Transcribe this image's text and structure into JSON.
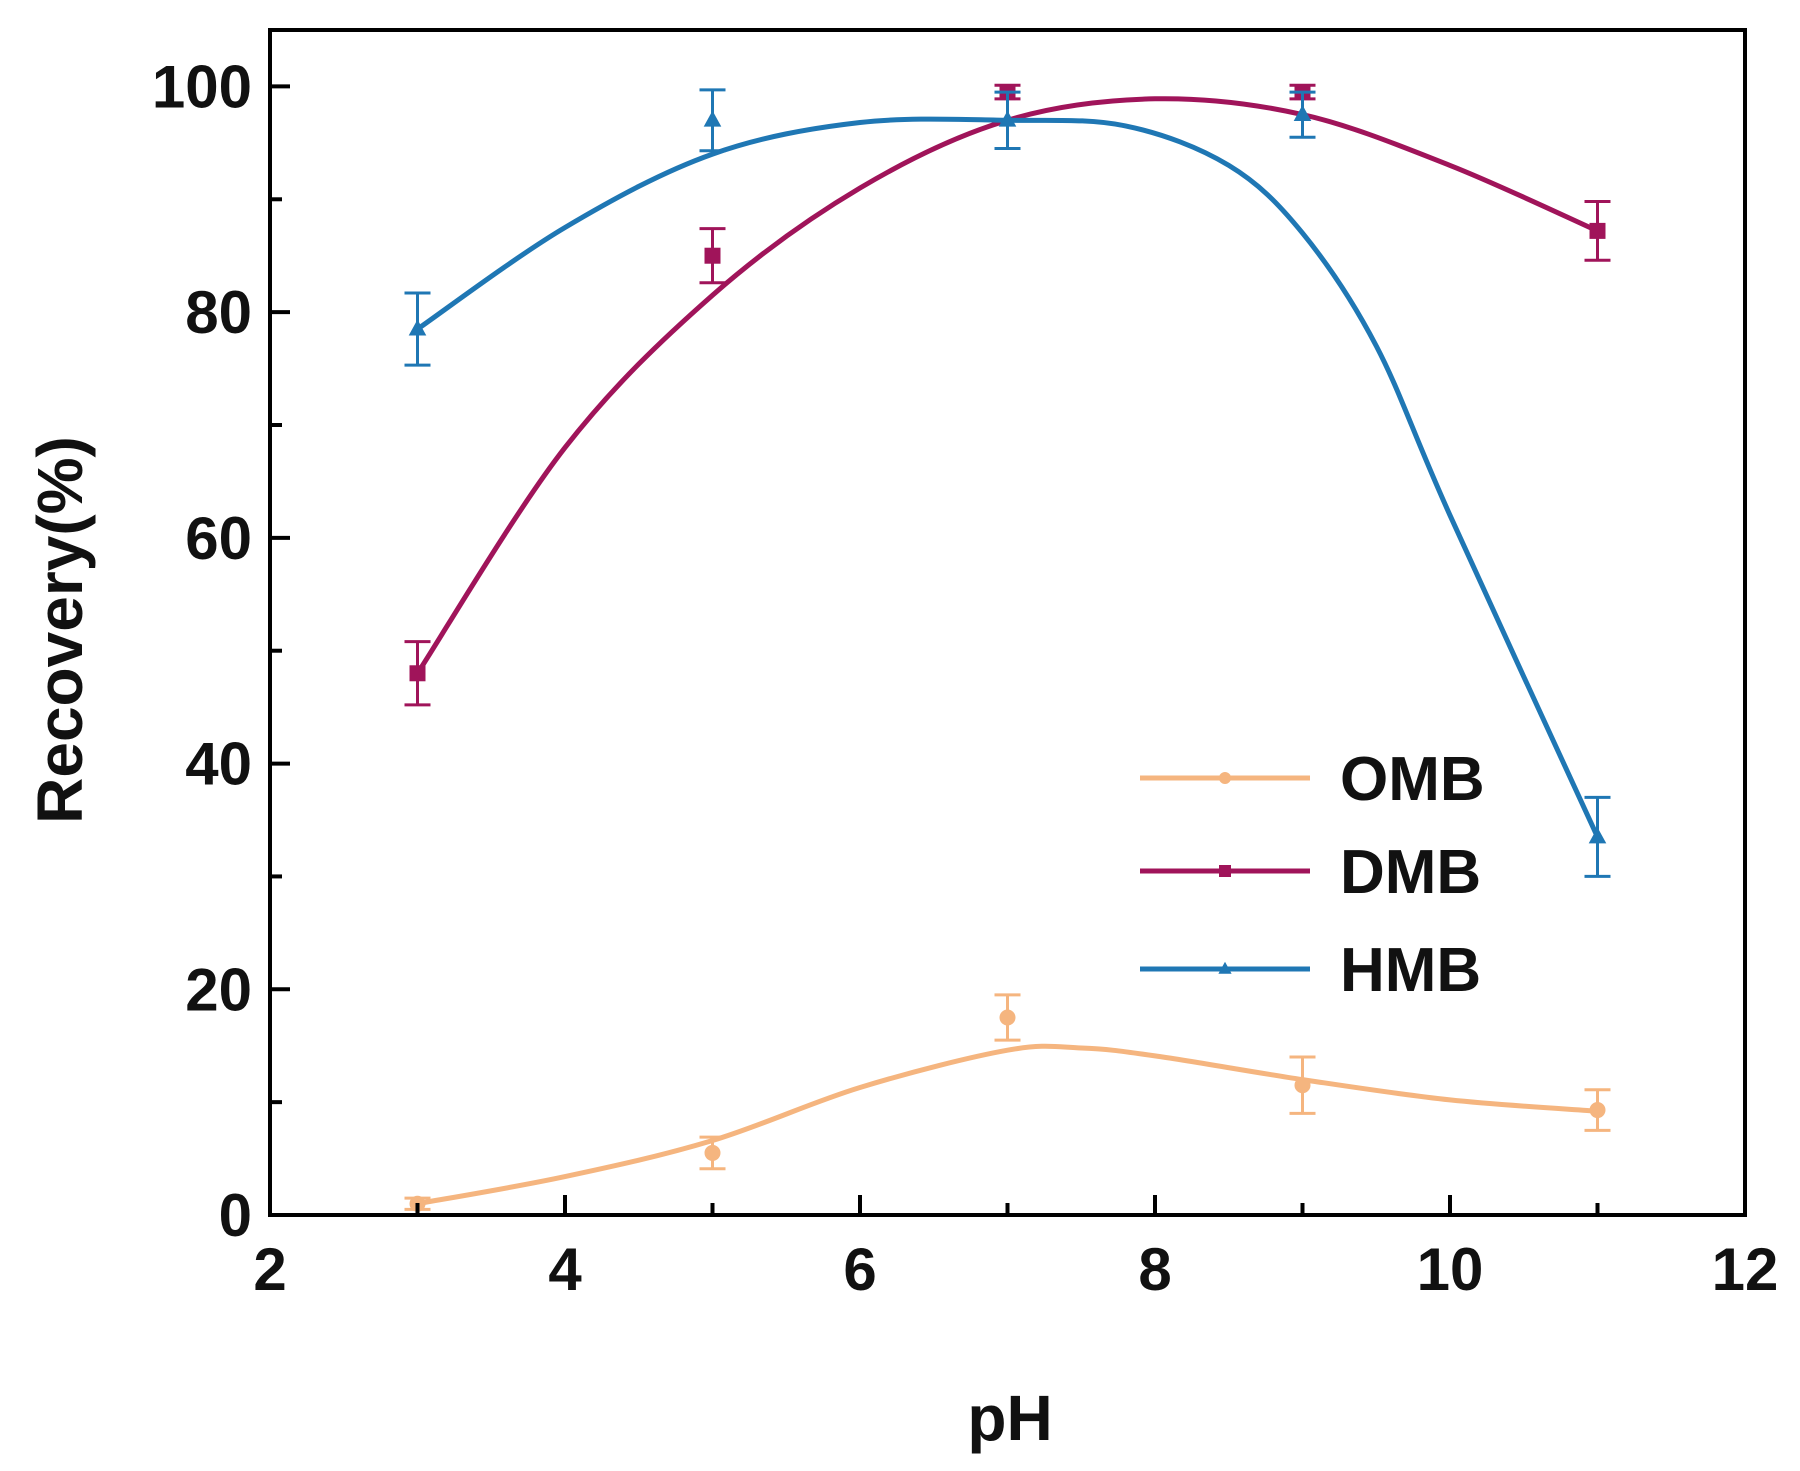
{
  "chart_data": {
    "type": "line",
    "xlabel": "pH",
    "ylabel": "Recovery(%)",
    "xlim": [
      2,
      12
    ],
    "ylim": [
      0,
      105
    ],
    "xticks": [
      2,
      4,
      6,
      8,
      10,
      12
    ],
    "yticks": [
      0,
      20,
      40,
      60,
      80,
      100
    ],
    "x_tick_labels": [
      "2",
      "4",
      "6",
      "8",
      "10",
      "12"
    ],
    "y_tick_labels": [
      "0",
      "20",
      "40",
      "60",
      "80",
      "100"
    ],
    "grid": false,
    "legend_position": "center-right",
    "x": [
      3,
      5,
      7,
      9,
      11
    ],
    "series": [
      {
        "name": "OMB",
        "color": "#f5b57f",
        "marker": "circle",
        "values": [
          1.0,
          5.5,
          17.5,
          11.5,
          9.3
        ],
        "errors": [
          0.5,
          1.4,
          2.0,
          2.5,
          1.8
        ],
        "fit_x": [
          3,
          4,
          5,
          6,
          7,
          7.5,
          8,
          9,
          10,
          11
        ],
        "fit_y": [
          1.0,
          3.4,
          6.6,
          11.3,
          14.6,
          14.8,
          14.1,
          12.0,
          10.2,
          9.2
        ]
      },
      {
        "name": "DMB",
        "color": "#a0145a",
        "marker": "square",
        "values": [
          48.0,
          85.0,
          99.5,
          99.5,
          87.2
        ],
        "errors": [
          2.8,
          2.4,
          0.6,
          0.6,
          2.6
        ],
        "fit_x": [
          3,
          4,
          5,
          6,
          7,
          8,
          9,
          10,
          11
        ],
        "fit_y": [
          48.0,
          68.0,
          81.5,
          91.0,
          97.0,
          98.9,
          97.5,
          93.0,
          87.2
        ],
        "fit_smooth": true
      },
      {
        "name": "HMB",
        "color": "#1f77b4",
        "marker": "triangle",
        "values": [
          78.5,
          97.0,
          97.0,
          97.5,
          33.5
        ],
        "errors": [
          3.2,
          2.7,
          2.5,
          2.0,
          3.5
        ],
        "fit_x": [
          3,
          4,
          5,
          6,
          7,
          7.8,
          8.5,
          9,
          9.5,
          10,
          11
        ],
        "fit_y": [
          78.5,
          87.5,
          94.0,
          96.8,
          97.0,
          96.5,
          93.0,
          87.0,
          77.0,
          62.0,
          33.5
        ]
      }
    ]
  }
}
